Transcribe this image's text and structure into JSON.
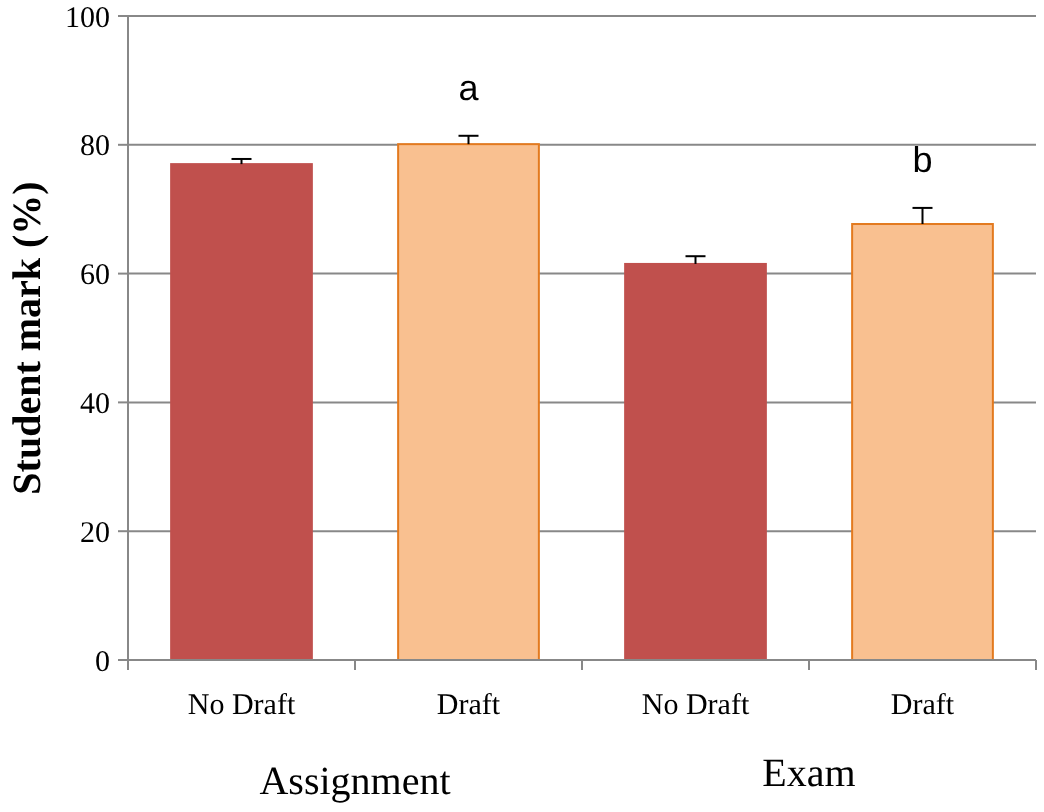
{
  "chart_data": {
    "type": "bar",
    "ylabel": "Student mark (%)",
    "categories": [
      "No Draft",
      "Draft",
      "No Draft",
      "Draft"
    ],
    "values": [
      77,
      80.1,
      61.5,
      67.7
    ],
    "colors": [
      "#c0504d",
      "#f9c090",
      "#c0504d",
      "#f9c090"
    ],
    "errors": [
      0.8,
      1.3,
      1.2,
      2.5
    ],
    "ylim": [
      0,
      100
    ],
    "yticks": [
      0,
      20,
      40,
      60,
      80,
      100
    ],
    "grid": "y",
    "annotations": [
      "a",
      "b",
      "Assignment",
      "Exam"
    ]
  }
}
